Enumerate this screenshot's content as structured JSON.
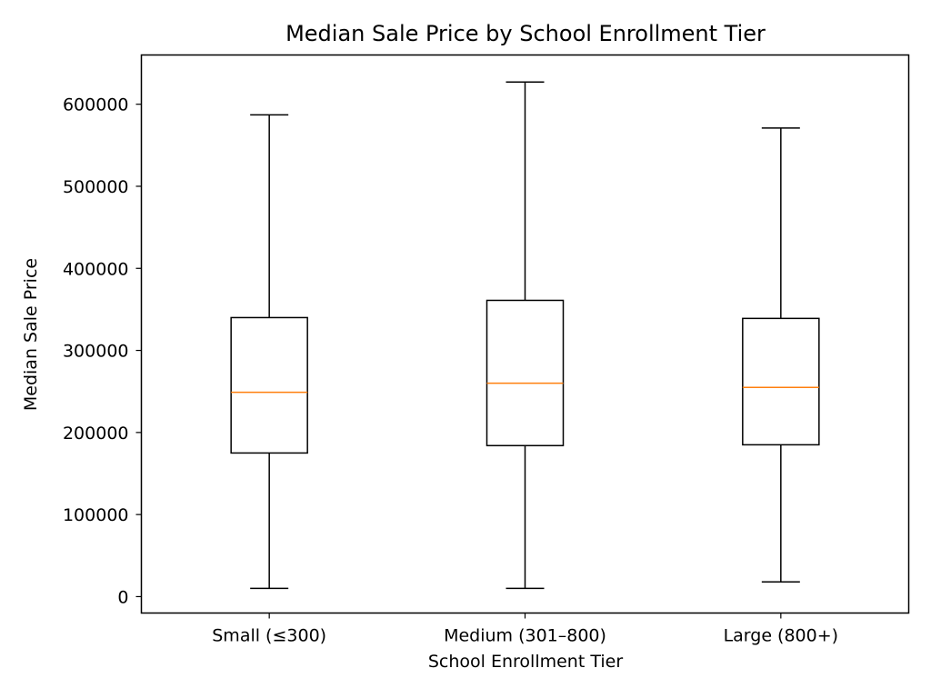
{
  "chart_data": {
    "type": "box",
    "title": "Median Sale Price by School Enrollment Tier",
    "xlabel": "School Enrollment Tier",
    "ylabel": "Median Sale Price",
    "ylim": [
      -20000,
      660000
    ],
    "yticks": [
      0,
      100000,
      200000,
      300000,
      400000,
      500000,
      600000
    ],
    "ytick_labels": [
      "0",
      "100000",
      "200000",
      "300000",
      "400000",
      "500000",
      "600000"
    ],
    "categories": [
      "Small (≤300)",
      "Medium (301–800)",
      "Large (800+)"
    ],
    "boxes": [
      {
        "category": "Small (≤300)",
        "whisker_low": 10000,
        "q1": 175000,
        "median": 249000,
        "q3": 340000,
        "whisker_high": 587000
      },
      {
        "category": "Medium (301–800)",
        "whisker_low": 10000,
        "q1": 184000,
        "median": 260000,
        "q3": 361000,
        "whisker_high": 627000
      },
      {
        "category": "Large (800+)",
        "whisker_low": 18000,
        "q1": 185000,
        "median": 255000,
        "q3": 339000,
        "whisker_high": 571000
      }
    ],
    "colors": {
      "box": "#000000",
      "median": "#ff7f0e"
    },
    "grid": false,
    "legend": "none"
  }
}
